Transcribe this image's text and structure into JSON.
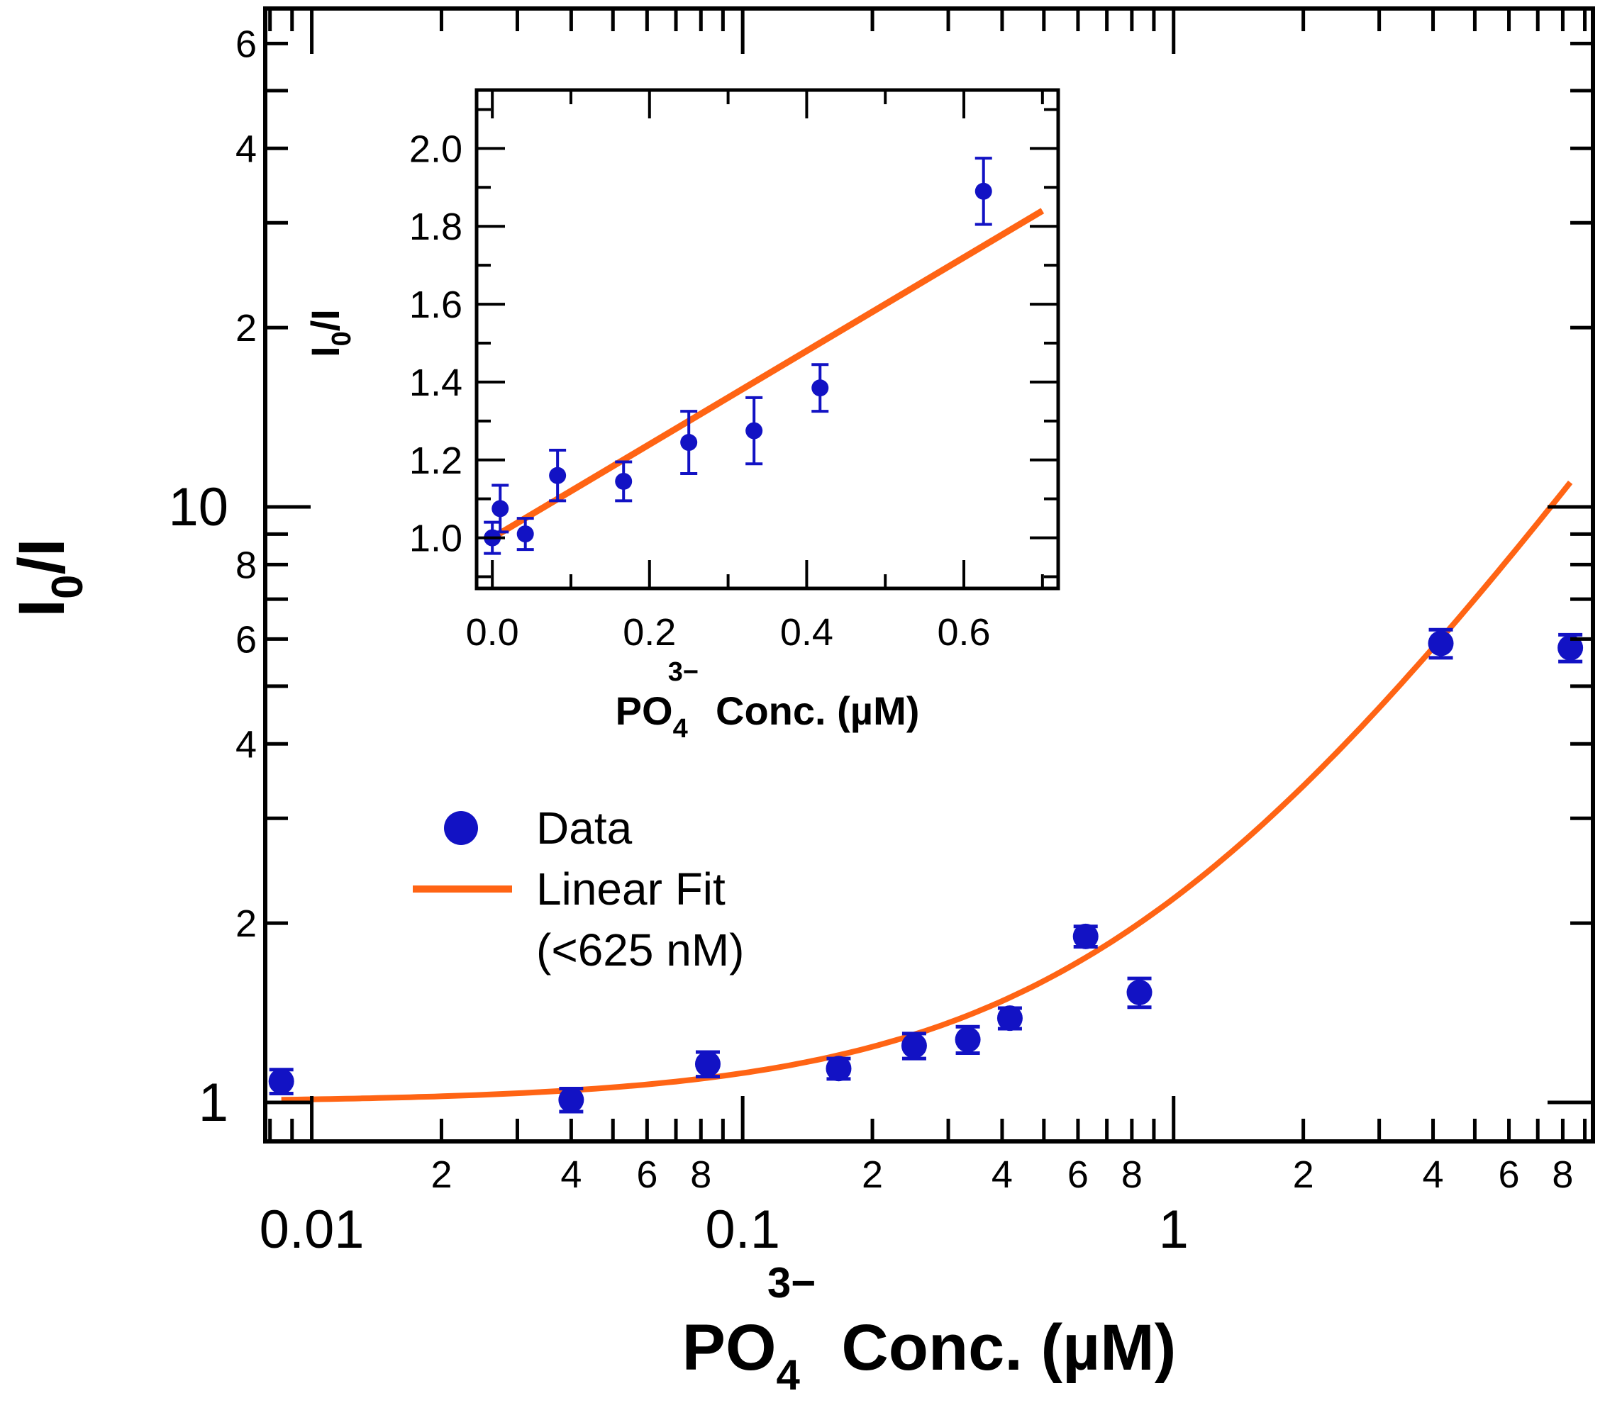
{
  "colors": {
    "data": "#1212c4",
    "fit": "#ff6414",
    "axis": "#000000"
  },
  "chart_data": [
    {
      "id": "main",
      "type": "scatter",
      "title": "",
      "xlabel": "PO4 Conc. (µM)",
      "xlabel_parts": {
        "base": "PO",
        "sub": "4",
        "sup": "3−",
        "rest": "Conc. (µM)"
      },
      "ylabel": "I0/I",
      "ylabel_parts": {
        "base": "I",
        "sub": "0",
        "rest": "/I"
      },
      "xscale": "log",
      "yscale": "log",
      "xlim": [
        0.0078,
        9.4
      ],
      "ylim": [
        0.95,
        6.5
      ],
      "x_major_ticks": [
        {
          "value": 0.01,
          "label": "0.01"
        },
        {
          "value": 0.1,
          "label": "0.1"
        },
        {
          "value": 1,
          "label": "1"
        }
      ],
      "x_minor_labels": [
        {
          "value": 0.02,
          "label": "2"
        },
        {
          "value": 0.04,
          "label": "4"
        },
        {
          "value": 0.06,
          "label": "6"
        },
        {
          "value": 0.08,
          "label": "8"
        },
        {
          "value": 0.2,
          "label": "2"
        },
        {
          "value": 0.4,
          "label": "4"
        },
        {
          "value": 0.6,
          "label": "6"
        },
        {
          "value": 0.8,
          "label": "8"
        },
        {
          "value": 2,
          "label": "2"
        },
        {
          "value": 4,
          "label": "4"
        },
        {
          "value": 6,
          "label": "6"
        },
        {
          "value": 8,
          "label": "8"
        }
      ],
      "y_major_ticks": [
        {
          "value": 1,
          "label": "1"
        },
        {
          "value": 10,
          "label": "10"
        }
      ],
      "y_minor_labels": [
        {
          "value": 2,
          "label": "2"
        },
        {
          "value": 4,
          "label": "4"
        },
        {
          "value": 6,
          "label": "6"
        },
        {
          "value": 8,
          "label": "8"
        },
        {
          "value": 20,
          "label": "2"
        },
        {
          "value": 40,
          "label": "4"
        },
        {
          "value": 60,
          "label": "6"
        }
      ],
      "legend": {
        "placement": "center-left",
        "entries": [
          {
            "label": "Data",
            "lines": [
              "Data"
            ]
          },
          {
            "label": "Linear Fit (<625 nM)",
            "lines": [
              "Linear Fit",
              "(<625 nM)"
            ]
          }
        ]
      },
      "series": [
        {
          "name": "Data",
          "kind": "points-with-error",
          "x": [
            0.0085,
            0.04,
            0.083,
            0.167,
            0.25,
            0.333,
            0.417,
            0.625,
            0.833,
            4.17,
            8.33
          ],
          "y": [
            1.085,
            1.01,
            1.16,
            1.14,
            1.245,
            1.275,
            1.385,
            1.9,
            1.53,
            5.9,
            5.8
          ],
          "err": [
            0.05,
            0.045,
            0.055,
            0.045,
            0.06,
            0.065,
            0.055,
            0.075,
            0.085,
            0.32,
            0.3
          ]
        },
        {
          "name": "Linear Fit (<625 nM)",
          "kind": "line",
          "intercept": 1.0,
          "slope": 1.2,
          "x_range": [
            0.0085,
            8.33
          ]
        }
      ]
    },
    {
      "id": "inset",
      "type": "scatter",
      "title": "",
      "xlabel": "PO4 Conc. (µM)",
      "xlabel_parts": {
        "base": "PO",
        "sub": "4",
        "sup": "3−",
        "rest": "Conc. (µM)"
      },
      "ylabel": "I0/I",
      "ylabel_parts": {
        "base": "I",
        "sub": "0",
        "rest": "/I"
      },
      "xscale": "linear",
      "yscale": "linear",
      "xlim": [
        -0.02,
        0.72
      ],
      "ylim": [
        0.87,
        2.15
      ],
      "x_ticks": [
        {
          "value": 0.0,
          "label": "0.0"
        },
        {
          "value": 0.2,
          "label": "0.2"
        },
        {
          "value": 0.4,
          "label": "0.4"
        },
        {
          "value": 0.6,
          "label": "0.6"
        }
      ],
      "x_minor": [
        0.1,
        0.3,
        0.5,
        0.7
      ],
      "y_ticks": [
        {
          "value": 1.0,
          "label": "1.0"
        },
        {
          "value": 1.2,
          "label": "1.2"
        },
        {
          "value": 1.4,
          "label": "1.4"
        },
        {
          "value": 1.6,
          "label": "1.6"
        },
        {
          "value": 1.8,
          "label": "1.8"
        },
        {
          "value": 2.0,
          "label": "2.0"
        }
      ],
      "series": [
        {
          "name": "Data",
          "kind": "points-with-error",
          "x": [
            0.0,
            0.01,
            0.042,
            0.083,
            0.167,
            0.25,
            0.333,
            0.417,
            0.625
          ],
          "y": [
            1.0,
            1.075,
            1.01,
            1.16,
            1.145,
            1.245,
            1.275,
            1.385,
            1.89
          ],
          "err": [
            0.04,
            0.06,
            0.04,
            0.065,
            0.05,
            0.08,
            0.085,
            0.06,
            0.085
          ]
        },
        {
          "name": "Linear Fit (<625 nM)",
          "kind": "line",
          "intercept": 1.0,
          "slope": 1.2,
          "x_range": [
            0.0,
            0.7
          ]
        }
      ]
    }
  ]
}
